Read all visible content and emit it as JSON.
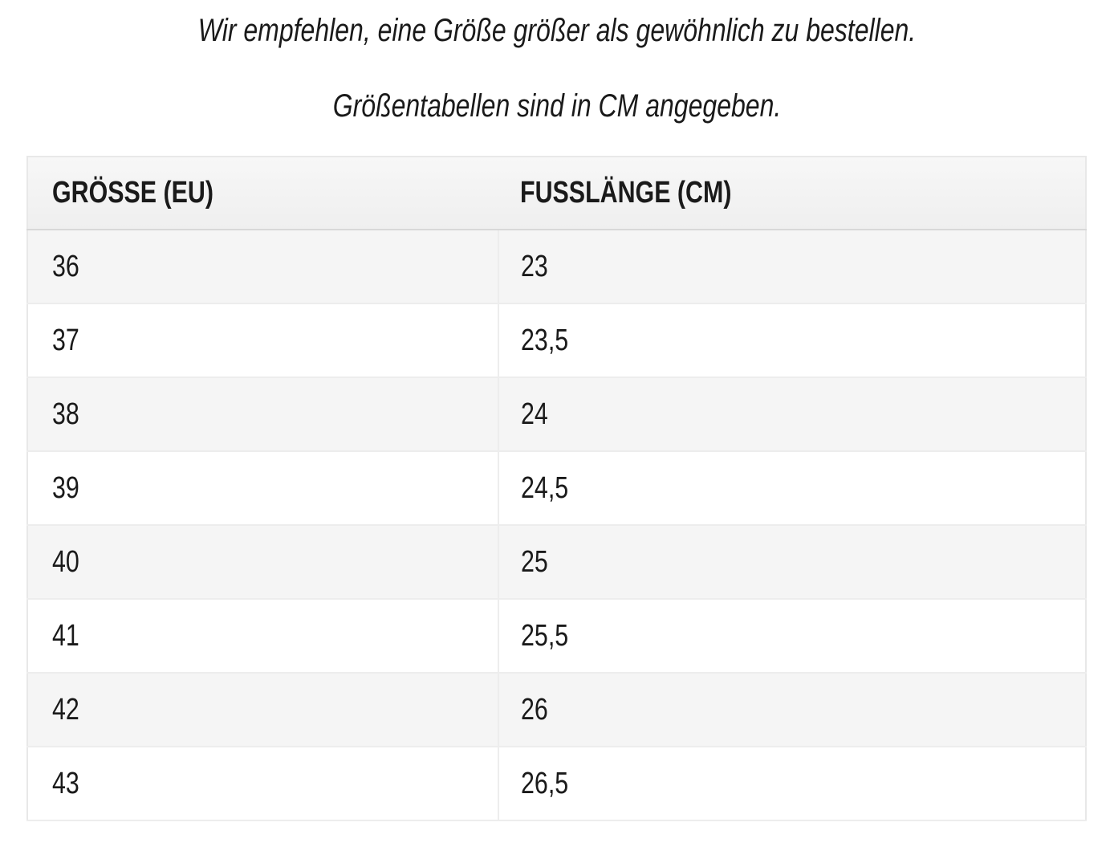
{
  "intro": {
    "line1": "Wir empfehlen, eine Größe größer als gewöhnlich zu bestellen.",
    "line2": "Größentabellen sind in CM angegeben."
  },
  "size_table": {
    "headers": [
      "GRÖSSE (EU)",
      "FUSSLÄNGE (CM)"
    ],
    "rows": [
      {
        "size_eu": "36",
        "foot_length_cm": "23"
      },
      {
        "size_eu": "37",
        "foot_length_cm": "23,5"
      },
      {
        "size_eu": "38",
        "foot_length_cm": "24"
      },
      {
        "size_eu": "39",
        "foot_length_cm": "24,5"
      },
      {
        "size_eu": "40",
        "foot_length_cm": "25"
      },
      {
        "size_eu": "41",
        "foot_length_cm": "25,5"
      },
      {
        "size_eu": "42",
        "foot_length_cm": "26"
      },
      {
        "size_eu": "43",
        "foot_length_cm": "26,5"
      }
    ]
  },
  "colors": {
    "text": "#1a1a1a",
    "header_bg": "#f4f4f4",
    "alt_row_bg": "#f5f5f5",
    "row_border": "#ededed",
    "header_border": "#d8d8d8",
    "outer_border": "#e8e8e8",
    "page_bg": "#ffffff"
  }
}
